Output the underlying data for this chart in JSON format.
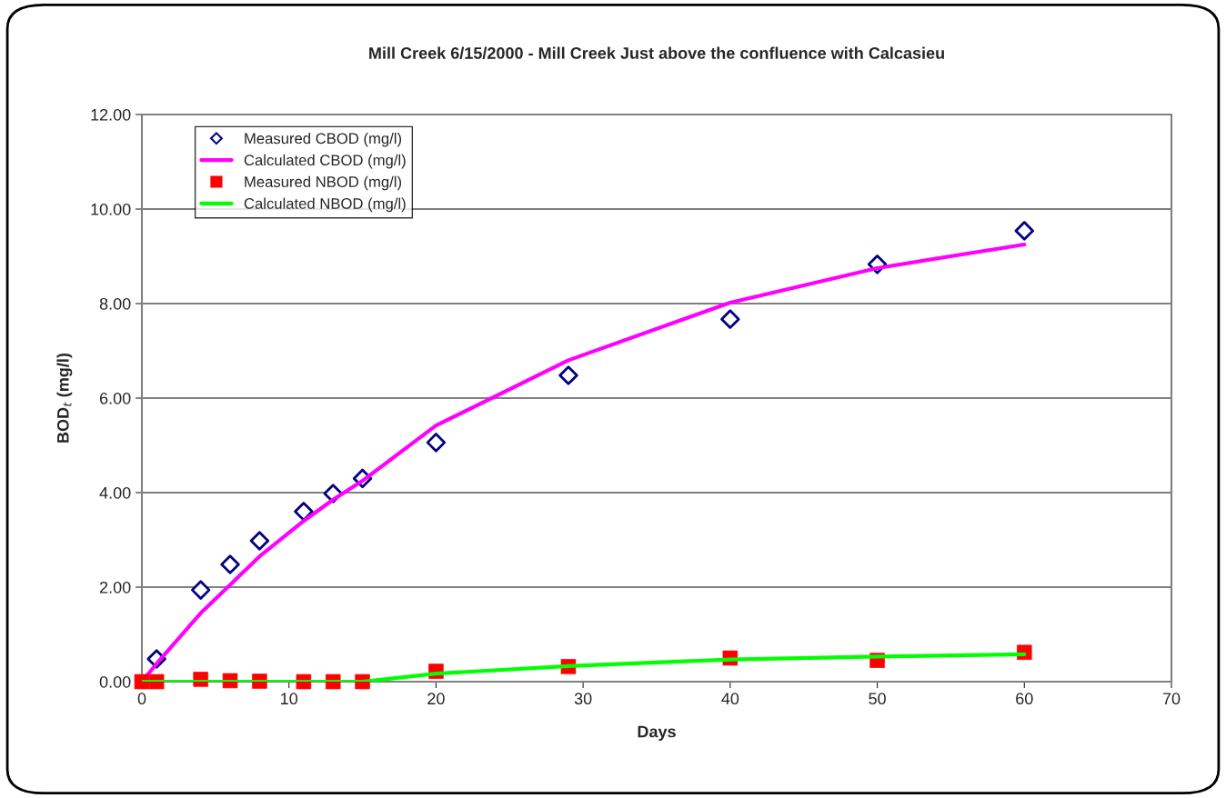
{
  "chart_data": {
    "type": "scatter",
    "title": "Mill Creek 6/15/2000 - Mill Creek Just above the confluence with Calcasieu",
    "xlabel": "Days",
    "ylabel": "BOD$_{t}$ (mg/l)",
    "series": [
      {
        "name": "Measured CBOD (mg/l)",
        "marker": "diamond",
        "color": "#000080",
        "x": [
          1,
          4,
          6,
          8,
          11,
          13,
          15,
          20,
          29,
          40,
          50,
          60
        ],
        "values": [
          0.48,
          1.94,
          2.48,
          2.98,
          3.6,
          3.98,
          4.3,
          5.06,
          6.48,
          7.67,
          8.83,
          9.54
        ]
      },
      {
        "name": "Calculated CBOD (mg/l)",
        "type": "line",
        "marker": "none",
        "color": "#ff00ff",
        "x": [
          0,
          1,
          4,
          6,
          8,
          11,
          13,
          15,
          20,
          29,
          40,
          50,
          60
        ],
        "values": [
          0,
          0.38,
          1.45,
          2.05,
          2.65,
          3.4,
          3.85,
          4.25,
          5.42,
          6.8,
          8.02,
          8.75,
          9.25
        ]
      },
      {
        "name": "Measured NBOD (mg/l)",
        "marker": "square",
        "color": "#ff0000",
        "x": [
          0,
          1,
          4,
          6,
          8,
          11,
          13,
          15,
          20,
          29,
          40,
          50,
          60
        ],
        "values": [
          0,
          0,
          0.05,
          0.02,
          0.01,
          0,
          0,
          0,
          0.22,
          0.32,
          0.5,
          0.45,
          0.62
        ]
      },
      {
        "name": "Calculated NBOD (mg/l)",
        "type": "line",
        "marker": "none",
        "color": "#00ff00",
        "x": [
          0,
          1,
          4,
          6,
          8,
          11,
          13,
          15,
          20,
          29,
          40,
          50,
          60
        ],
        "values": [
          0,
          0,
          0,
          0,
          0,
          0,
          0,
          0,
          0.17,
          0.33,
          0.47,
          0.53,
          0.58
        ]
      }
    ],
    "xlim": [
      0,
      70
    ],
    "xticks": [
      0,
      10,
      20,
      30,
      40,
      50,
      60,
      70
    ],
    "ylim": [
      0,
      12
    ],
    "yticks": [
      {
        "value": 0,
        "label": "0.00"
      },
      {
        "value": 2,
        "label": "2.00"
      },
      {
        "value": 4,
        "label": "4.00"
      },
      {
        "value": 6,
        "label": "6.00"
      },
      {
        "value": 8,
        "label": "8.00"
      },
      {
        "value": 10,
        "label": "10.00"
      },
      {
        "value": 12,
        "label": "12.00"
      }
    ],
    "grid": "y",
    "legend": "top left"
  }
}
